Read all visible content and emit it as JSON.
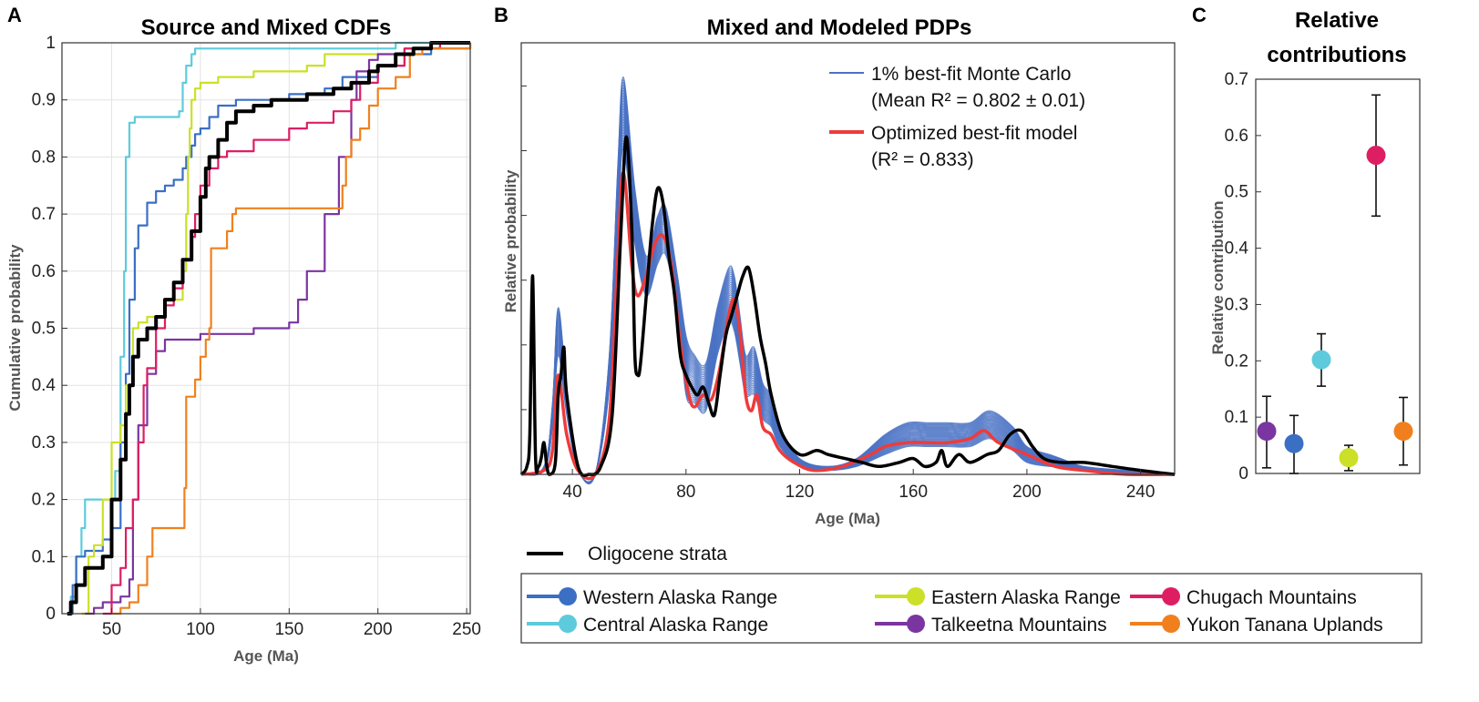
{
  "panel_labels": {
    "a": "A",
    "b": "B",
    "c": "C"
  },
  "colors": {
    "western": "#3a6fc4",
    "central": "#5dcbdc",
    "eastern": "#cbe027",
    "talkeetna": "#7b35a1",
    "chugach": "#dd1e63",
    "yukon": "#f0801e",
    "oligocene": "#000000",
    "monte_carlo": "#4a72c4",
    "optimized": "#ee3b3b"
  },
  "legend": {
    "oligocene": "Oligocene strata",
    "sources": [
      {
        "label": "Western Alaska Range",
        "color": "#3a6fc4"
      },
      {
        "label": "Eastern Alaska Range",
        "color": "#cbe027"
      },
      {
        "label": "Chugach Mountains",
        "color": "#dd1e63"
      },
      {
        "label": "Central Alaska Range",
        "color": "#5dcbdc"
      },
      {
        "label": "Talkeetna Mountains",
        "color": "#7b35a1"
      },
      {
        "label": "Yukon Tanana Uplands",
        "color": "#f0801e"
      }
    ]
  },
  "chart_data": [
    {
      "type": "line",
      "title": "Source and Mixed CDFs",
      "xlabel": "Age (Ma)",
      "ylabel": "Cumulative probability",
      "xlim": [
        22,
        252
      ],
      "ylim": [
        0,
        1
      ],
      "xticks": [
        50,
        100,
        150,
        200,
        250
      ],
      "yticks": [
        0,
        0.1,
        0.2,
        0.3,
        0.4,
        0.5,
        0.6,
        0.7,
        0.8,
        0.9,
        1
      ],
      "grid": true,
      "series": [
        {
          "name": "Central Alaska Range",
          "color": "#5dcbdc",
          "x": [
            25,
            27,
            30,
            33,
            35,
            45,
            52,
            55,
            57,
            58,
            60,
            63,
            70,
            80,
            85,
            88,
            90,
            92,
            95,
            97,
            100,
            110,
            130,
            160,
            190,
            210,
            225,
            245,
            252
          ],
          "y": [
            0,
            0.03,
            0.1,
            0.15,
            0.2,
            0.2,
            0.25,
            0.45,
            0.6,
            0.8,
            0.86,
            0.87,
            0.87,
            0.87,
            0.87,
            0.88,
            0.93,
            0.96,
            0.98,
            0.99,
            0.99,
            0.99,
            0.99,
            0.99,
            0.99,
            1,
            1,
            1,
            1
          ]
        },
        {
          "name": "Western Alaska Range",
          "color": "#3a6fc4",
          "x": [
            25,
            28,
            30,
            35,
            45,
            50,
            55,
            58,
            60,
            63,
            65,
            70,
            75,
            80,
            85,
            90,
            92,
            95,
            97,
            100,
            105,
            110,
            120,
            130,
            150,
            170,
            180,
            200,
            215,
            230,
            252
          ],
          "y": [
            0,
            0.05,
            0.1,
            0.11,
            0.13,
            0.15,
            0.3,
            0.42,
            0.55,
            0.64,
            0.68,
            0.72,
            0.74,
            0.75,
            0.76,
            0.78,
            0.8,
            0.82,
            0.84,
            0.85,
            0.87,
            0.89,
            0.9,
            0.9,
            0.91,
            0.92,
            0.94,
            0.96,
            0.98,
            0.99,
            1
          ]
        },
        {
          "name": "Eastern Alaska Range",
          "color": "#cbe027",
          "x": [
            33,
            37,
            40,
            45,
            50,
            55,
            58,
            62,
            65,
            70,
            80,
            90,
            92,
            93,
            94,
            95,
            97,
            100,
            110,
            130,
            150,
            160,
            170,
            190,
            215,
            230,
            252
          ],
          "y": [
            0,
            0.1,
            0.12,
            0.2,
            0.3,
            0.33,
            0.4,
            0.5,
            0.51,
            0.52,
            0.55,
            0.6,
            0.7,
            0.8,
            0.85,
            0.9,
            0.92,
            0.93,
            0.94,
            0.95,
            0.95,
            0.96,
            0.98,
            0.98,
            0.99,
            1,
            1
          ]
        },
        {
          "name": "Talkeetna Mountains",
          "color": "#7b35a1",
          "x": [
            35,
            40,
            45,
            55,
            60,
            62,
            65,
            70,
            75,
            80,
            100,
            130,
            150,
            155,
            160,
            170,
            178,
            185,
            188,
            195,
            200,
            215,
            235,
            252
          ],
          "y": [
            0,
            0.01,
            0.02,
            0.03,
            0.06,
            0.2,
            0.33,
            0.42,
            0.46,
            0.48,
            0.49,
            0.5,
            0.51,
            0.55,
            0.6,
            0.7,
            0.8,
            0.9,
            0.95,
            0.97,
            0.98,
            0.99,
            1,
            1
          ]
        },
        {
          "name": "Chugach Mountains",
          "color": "#dd1e63",
          "x": [
            45,
            50,
            55,
            58,
            62,
            65,
            68,
            70,
            75,
            80,
            85,
            90,
            95,
            97,
            100,
            105,
            110,
            115,
            130,
            150,
            160,
            175,
            185,
            190,
            200,
            215,
            235,
            252
          ],
          "y": [
            0,
            0.05,
            0.08,
            0.15,
            0.2,
            0.3,
            0.4,
            0.43,
            0.5,
            0.54,
            0.57,
            0.62,
            0.66,
            0.7,
            0.75,
            0.78,
            0.8,
            0.81,
            0.83,
            0.85,
            0.86,
            0.88,
            0.9,
            0.93,
            0.96,
            0.99,
            1,
            1
          ]
        },
        {
          "name": "Yukon Tanana Uplands",
          "color": "#f0801e",
          "x": [
            50,
            55,
            60,
            65,
            70,
            73,
            90,
            91,
            92,
            97,
            100,
            103,
            105,
            106,
            115,
            118,
            120,
            135,
            150,
            170,
            180,
            182,
            185,
            190,
            195,
            200,
            210,
            218,
            225,
            252
          ],
          "y": [
            0,
            0.01,
            0.02,
            0.05,
            0.1,
            0.15,
            0.15,
            0.22,
            0.38,
            0.41,
            0.45,
            0.48,
            0.5,
            0.64,
            0.67,
            0.7,
            0.71,
            0.71,
            0.71,
            0.71,
            0.75,
            0.8,
            0.83,
            0.85,
            0.89,
            0.92,
            0.94,
            0.98,
            0.99,
            1
          ]
        },
        {
          "name": "Oligocene strata",
          "color": "#000000",
          "x": [
            25,
            27,
            30,
            35,
            40,
            45,
            50,
            55,
            58,
            60,
            62,
            65,
            70,
            75,
            80,
            85,
            90,
            95,
            100,
            103,
            105,
            110,
            115,
            120,
            130,
            140,
            150,
            160,
            175,
            185,
            195,
            200,
            210,
            220,
            230,
            252
          ],
          "y": [
            0,
            0.02,
            0.05,
            0.08,
            0.08,
            0.1,
            0.2,
            0.27,
            0.35,
            0.4,
            0.45,
            0.48,
            0.5,
            0.52,
            0.55,
            0.58,
            0.62,
            0.67,
            0.73,
            0.78,
            0.8,
            0.83,
            0.86,
            0.88,
            0.89,
            0.9,
            0.9,
            0.91,
            0.92,
            0.93,
            0.95,
            0.96,
            0.98,
            0.99,
            1,
            1
          ]
        }
      ]
    },
    {
      "type": "line",
      "title": "Mixed and Modeled PDPs",
      "xlabel": "Age (Ma)",
      "ylabel": "Relative probability",
      "xlim": [
        22,
        252
      ],
      "ylim": [
        0,
        1
      ],
      "xticks": [
        40,
        80,
        120,
        160,
        200,
        240
      ],
      "annotations": [
        "1% best-fit Monte Carlo",
        "(Mean R² = 0.802 ± 0.01)",
        "Optimized best-fit model",
        "(R² = 0.833)"
      ],
      "series": [
        {
          "name": "1% best-fit Monte Carlo (upper envelope)",
          "color": "#4a72c4",
          "x": [
            22,
            30,
            33,
            35,
            38,
            42,
            48,
            53,
            56,
            58,
            62,
            66,
            70,
            73,
            77,
            80,
            83,
            87,
            91,
            95,
            97,
            99,
            101,
            104,
            107,
            110,
            113,
            120,
            130,
            140,
            150,
            158,
            165,
            172,
            180,
            187,
            195,
            200,
            208,
            212,
            220,
            235,
            252
          ],
          "y": [
            0,
            0.02,
            0.18,
            0.42,
            0.22,
            0.02,
            0,
            0.3,
            0.78,
            1,
            0.72,
            0.55,
            0.65,
            0.67,
            0.5,
            0.35,
            0.3,
            0.28,
            0.42,
            0.52,
            0.5,
            0.4,
            0.3,
            0.32,
            0.23,
            0.2,
            0.12,
            0.04,
            0.02,
            0.04,
            0.1,
            0.13,
            0.13,
            0.13,
            0.13,
            0.16,
            0.12,
            0.07,
            0.05,
            0.04,
            0.02,
            0.01,
            0
          ]
        },
        {
          "name": "1% best-fit Monte Carlo (lower envelope)",
          "color": "#4a72c4",
          "x": [
            22,
            30,
            33,
            35,
            38,
            42,
            48,
            53,
            56,
            58,
            62,
            66,
            70,
            73,
            77,
            80,
            83,
            87,
            91,
            95,
            97,
            99,
            101,
            104,
            107,
            110,
            113,
            120,
            130,
            140,
            150,
            158,
            165,
            172,
            180,
            187,
            195,
            200,
            208,
            212,
            220,
            235,
            252
          ],
          "y": [
            0,
            0.01,
            0.12,
            0.3,
            0.15,
            0.01,
            0,
            0.22,
            0.62,
            0.82,
            0.58,
            0.45,
            0.53,
            0.55,
            0.4,
            0.2,
            0.18,
            0.16,
            0.3,
            0.38,
            0.36,
            0.28,
            0.2,
            0.2,
            0.14,
            0.12,
            0.07,
            0.02,
            0.01,
            0.02,
            0.05,
            0.07,
            0.07,
            0.07,
            0.07,
            0.09,
            0.06,
            0.03,
            0.02,
            0.02,
            0.01,
            0,
            0
          ]
        },
        {
          "name": "Optimized best-fit model",
          "color": "#ee3b3b",
          "x": [
            22,
            30,
            33,
            35,
            38,
            42,
            48,
            53,
            56,
            58,
            61,
            63,
            66,
            69,
            72,
            75,
            78,
            81,
            83,
            86,
            89,
            92,
            95,
            97,
            99,
            101,
            103,
            105,
            107,
            110,
            113,
            118,
            125,
            135,
            145,
            150,
            158,
            165,
            172,
            180,
            185,
            190,
            200,
            210,
            220,
            235,
            252
          ],
          "y": [
            0,
            0.01,
            0.06,
            0.25,
            0.1,
            0.01,
            0,
            0.14,
            0.55,
            0.76,
            0.52,
            0.45,
            0.5,
            0.58,
            0.6,
            0.52,
            0.33,
            0.2,
            0.17,
            0.2,
            0.19,
            0.27,
            0.4,
            0.44,
            0.36,
            0.2,
            0.16,
            0.2,
            0.12,
            0.1,
            0.06,
            0.03,
            0.01,
            0.02,
            0.05,
            0.07,
            0.08,
            0.08,
            0.08,
            0.09,
            0.11,
            0.08,
            0.05,
            0.02,
            0.01,
            0,
            0
          ]
        },
        {
          "name": "Oligocene strata",
          "color": "#000000",
          "x": [
            22,
            24,
            25,
            26,
            27,
            28,
            29,
            30,
            31,
            32,
            34,
            35,
            36,
            37,
            38,
            42,
            46,
            50,
            54,
            57,
            59,
            61,
            62,
            63,
            64,
            66,
            68,
            70,
            72,
            74,
            76,
            78,
            80,
            82,
            84,
            86,
            88,
            90,
            92,
            94,
            96,
            98,
            100,
            102,
            104,
            106,
            108,
            110,
            114,
            120,
            126,
            130,
            136,
            142,
            148,
            155,
            160,
            164,
            168,
            170,
            172,
            176,
            180,
            186,
            190,
            194,
            198,
            202,
            206,
            212,
            220,
            230,
            240,
            252
          ],
          "y": [
            0,
            0.02,
            0.1,
            0.5,
            0.05,
            0.02,
            0.04,
            0.08,
            0.02,
            0,
            0.03,
            0.2,
            0.25,
            0.32,
            0.2,
            0.02,
            0,
            0.02,
            0.15,
            0.6,
            0.85,
            0.6,
            0.3,
            0.25,
            0.28,
            0.45,
            0.62,
            0.72,
            0.68,
            0.55,
            0.45,
            0.3,
            0.25,
            0.22,
            0.2,
            0.22,
            0.18,
            0.15,
            0.25,
            0.35,
            0.4,
            0.45,
            0.5,
            0.52,
            0.45,
            0.35,
            0.28,
            0.2,
            0.1,
            0.05,
            0.06,
            0.05,
            0.04,
            0.03,
            0.02,
            0.03,
            0.04,
            0.02,
            0.03,
            0.06,
            0.02,
            0.05,
            0.03,
            0.05,
            0.06,
            0.1,
            0.11,
            0.07,
            0.04,
            0.03,
            0.03,
            0.02,
            0.01,
            0
          ]
        }
      ]
    },
    {
      "type": "scatter",
      "title": "Relative contributions",
      "xlabel": "",
      "ylabel": "Relative contribution",
      "ylim": [
        0,
        0.7
      ],
      "yticks": [
        0,
        0.1,
        0.2,
        0.3,
        0.4,
        0.5,
        0.6,
        0.7
      ],
      "points": [
        {
          "name": "Talkeetna Mountains",
          "color": "#7b35a1",
          "value": 0.075,
          "low": 0.01,
          "high": 0.137
        },
        {
          "name": "Western Alaska Range",
          "color": "#3a6fc4",
          "value": 0.053,
          "low": 0.0,
          "high": 0.103
        },
        {
          "name": "Central Alaska Range",
          "color": "#5dcbdc",
          "value": 0.202,
          "low": 0.155,
          "high": 0.248
        },
        {
          "name": "Eastern Alaska Range",
          "color": "#cbe027",
          "value": 0.028,
          "low": 0.005,
          "high": 0.05
        },
        {
          "name": "Chugach Mountains",
          "color": "#dd1e63",
          "value": 0.565,
          "low": 0.457,
          "high": 0.672
        },
        {
          "name": "Yukon Tanana Uplands",
          "color": "#f0801e",
          "value": 0.075,
          "low": 0.015,
          "high": 0.135
        }
      ]
    }
  ]
}
